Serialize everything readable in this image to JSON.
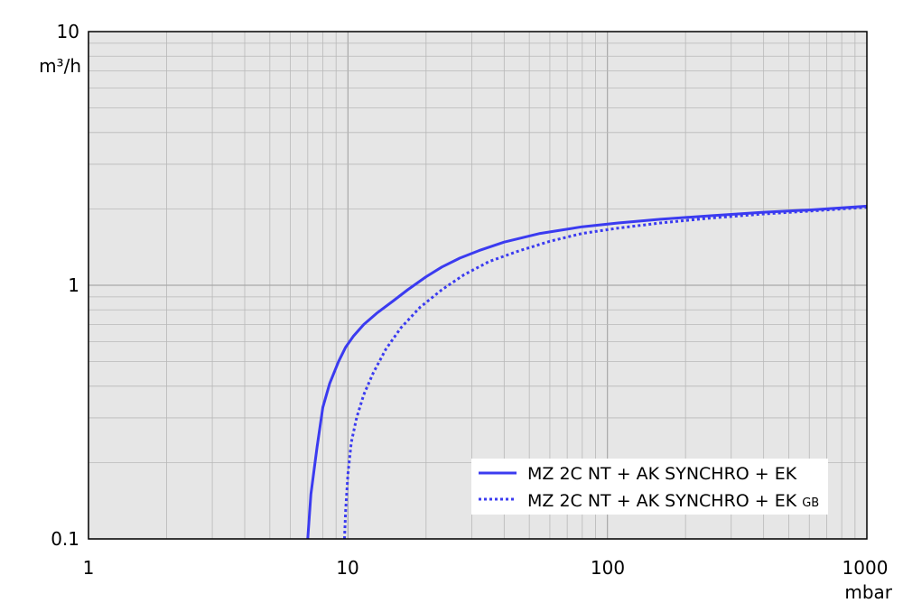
{
  "chart_data": {
    "type": "line",
    "title": "",
    "xlabel": "mbar",
    "ylabel": "m³/h",
    "x_scale": "log",
    "y_scale": "log",
    "xlim": [
      1,
      1000
    ],
    "ylim": [
      0.1,
      10
    ],
    "grid": true,
    "legend_placement": "bottom-right",
    "x_ticks": [
      "1",
      "10",
      "100",
      "1000"
    ],
    "y_ticks": [
      "0.1",
      "1",
      "10"
    ],
    "colors": {
      "series": "#3b3bf0",
      "plot_background": "#e6e6e6",
      "grid": "#b8b8b8"
    },
    "series": [
      {
        "name": "MZ 2C NT + AK SYNCHRO + EK",
        "line_style": "solid",
        "x": [
          7.0,
          7.2,
          7.6,
          8.0,
          8.5,
          9.2,
          9.8,
          10.5,
          11.5,
          13,
          15,
          17,
          20,
          23,
          27,
          32,
          40,
          55,
          80,
          110,
          160,
          250,
          400,
          600,
          1000
        ],
        "y": [
          0.1,
          0.15,
          0.23,
          0.33,
          0.41,
          0.5,
          0.57,
          0.63,
          0.7,
          0.78,
          0.87,
          0.96,
          1.08,
          1.18,
          1.28,
          1.37,
          1.48,
          1.6,
          1.7,
          1.76,
          1.82,
          1.88,
          1.94,
          1.98,
          2.05
        ]
      },
      {
        "name": "MZ 2C NT + AK SYNCHRO + EK GB",
        "line_style": "dotted",
        "x": [
          9.7,
          9.8,
          10.0,
          10.3,
          10.8,
          11.5,
          12.5,
          14,
          16,
          19,
          23,
          28,
          35,
          45,
          60,
          80,
          110,
          160,
          250,
          400,
          600,
          1000
        ],
        "y": [
          0.1,
          0.13,
          0.18,
          0.24,
          0.3,
          0.37,
          0.45,
          0.56,
          0.68,
          0.82,
          0.96,
          1.1,
          1.24,
          1.36,
          1.49,
          1.6,
          1.68,
          1.76,
          1.84,
          1.91,
          1.96,
          2.03
        ]
      }
    ],
    "legend": {
      "entries": [
        {
          "text": "MZ 2C NT + AK SYNCHRO + EK",
          "sub": ""
        },
        {
          "text": "MZ 2C NT + AK SYNCHRO + EK",
          "sub": "GB"
        }
      ]
    }
  }
}
